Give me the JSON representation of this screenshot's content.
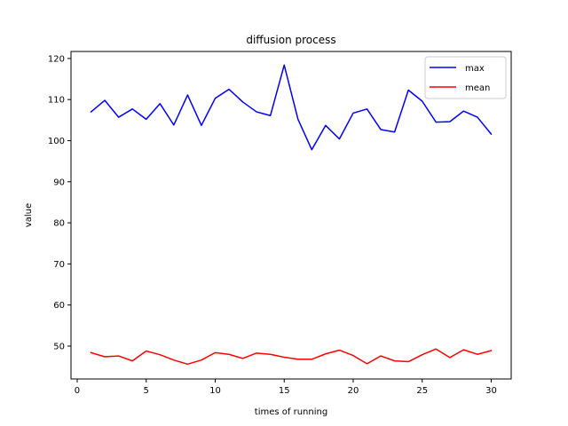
{
  "chart_data": {
    "type": "line",
    "title": "diffusion process",
    "xlabel": "times of running",
    "ylabel": "value",
    "xlim": [
      -0.45,
      31.45
    ],
    "ylim": [
      42.0,
      121.7
    ],
    "xticks": [
      0,
      5,
      10,
      15,
      20,
      25,
      30
    ],
    "yticks": [
      50,
      60,
      70,
      80,
      90,
      100,
      110,
      120
    ],
    "grid": false,
    "legend_position": "upper right",
    "x": [
      1,
      2,
      3,
      4,
      5,
      6,
      7,
      8,
      9,
      10,
      11,
      12,
      13,
      14,
      15,
      16,
      17,
      18,
      19,
      20,
      21,
      22,
      23,
      24,
      25,
      26,
      27,
      28,
      29,
      30
    ],
    "series": [
      {
        "name": "max",
        "color": "#0000ff",
        "values": [
          107.0,
          109.8,
          105.7,
          107.7,
          105.2,
          109.0,
          103.8,
          111.1,
          103.7,
          110.3,
          112.5,
          109.4,
          107.0,
          106.1,
          118.4,
          105.2,
          97.8,
          103.7,
          100.4,
          106.7,
          107.7,
          102.7,
          102.1,
          112.3,
          109.6,
          104.5,
          104.6,
          107.2,
          105.7,
          101.6
        ]
      },
      {
        "name": "mean",
        "color": "#ff0000",
        "values": [
          48.4,
          47.4,
          47.6,
          46.4,
          48.8,
          47.9,
          46.6,
          45.6,
          46.6,
          48.4,
          48.0,
          47.0,
          48.3,
          48.0,
          47.3,
          46.8,
          46.8,
          48.1,
          49.0,
          47.7,
          45.7,
          47.6,
          46.4,
          46.2,
          47.9,
          49.3,
          47.2,
          49.1,
          48.0,
          48.9
        ]
      }
    ]
  }
}
